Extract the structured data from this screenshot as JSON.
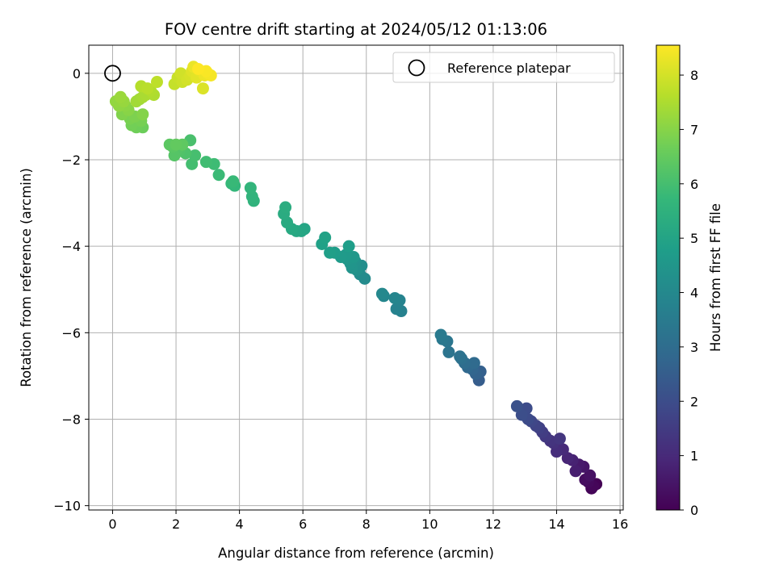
{
  "chart_data": {
    "type": "scatter",
    "title": "FOV centre drift starting at 2024/05/12 01:13:06",
    "xlabel": "Angular distance from reference (arcmin)",
    "ylabel": "Rotation from reference (arcmin)",
    "xlim": [
      -0.75,
      16.1
    ],
    "ylim": [
      -10.1,
      0.65
    ],
    "xticks": [
      "0",
      "2",
      "4",
      "6",
      "8",
      "10",
      "12",
      "14",
      "16"
    ],
    "yticks": [
      "0",
      "−2",
      "−4",
      "−6",
      "−8",
      "−10"
    ],
    "grid": true,
    "legend": {
      "placement": "top-right",
      "label": "Reference platepar"
    },
    "reference_point": {
      "x": 0,
      "y": 0
    },
    "colorbar": {
      "label": "Hours from first FF file",
      "range": [
        0,
        8.55
      ],
      "ticks": [
        "0",
        "1",
        "2",
        "3",
        "4",
        "5",
        "6",
        "7",
        "8"
      ],
      "colormap": "viridis",
      "colors": [
        "#440154",
        "#482878",
        "#3e4989",
        "#31688e",
        "#26828e",
        "#1f9e89",
        "#35b779",
        "#6ece58",
        "#b5de2b",
        "#fde725"
      ]
    },
    "points": [
      [
        15.25,
        -9.5,
        0.02
      ],
      [
        15.1,
        -9.6,
        0.08
      ],
      [
        15.15,
        -9.55,
        0.12
      ],
      [
        15.0,
        -9.45,
        0.2
      ],
      [
        14.9,
        -9.4,
        0.3
      ],
      [
        15.05,
        -9.3,
        0.4
      ],
      [
        14.85,
        -9.1,
        0.5
      ],
      [
        14.7,
        -9.05,
        0.6
      ],
      [
        14.6,
        -9.2,
        0.7
      ],
      [
        14.5,
        -8.95,
        0.8
      ],
      [
        14.35,
        -8.9,
        0.9
      ],
      [
        14.2,
        -8.7,
        1.0
      ],
      [
        14.05,
        -8.6,
        1.05
      ],
      [
        14.0,
        -8.75,
        1.1
      ],
      [
        13.9,
        -8.55,
        1.2
      ],
      [
        13.8,
        -8.5,
        1.3
      ],
      [
        14.1,
        -8.45,
        1.35
      ],
      [
        13.65,
        -8.4,
        1.45
      ],
      [
        13.55,
        -8.3,
        1.55
      ],
      [
        13.45,
        -8.2,
        1.65
      ],
      [
        13.35,
        -8.15,
        1.75
      ],
      [
        13.2,
        -8.05,
        1.85
      ],
      [
        13.1,
        -8.0,
        1.95
      ],
      [
        13.05,
        -7.75,
        2.0
      ],
      [
        12.9,
        -7.9,
        2.05
      ],
      [
        12.75,
        -7.7,
        2.15
      ],
      [
        11.55,
        -7.1,
        2.5
      ],
      [
        11.6,
        -6.9,
        2.6
      ],
      [
        11.45,
        -6.95,
        2.7
      ],
      [
        11.35,
        -6.85,
        2.8
      ],
      [
        11.2,
        -6.8,
        2.9
      ],
      [
        11.4,
        -6.7,
        2.95
      ],
      [
        11.1,
        -6.7,
        3.05
      ],
      [
        11.0,
        -6.6,
        3.15
      ],
      [
        10.95,
        -6.55,
        3.2
      ],
      [
        10.6,
        -6.45,
        3.3
      ],
      [
        10.55,
        -6.2,
        3.35
      ],
      [
        10.4,
        -6.15,
        3.45
      ],
      [
        10.35,
        -6.05,
        3.5
      ],
      [
        9.1,
        -5.5,
        3.75
      ],
      [
        8.95,
        -5.45,
        3.8
      ],
      [
        9.05,
        -5.25,
        3.85
      ],
      [
        8.9,
        -5.2,
        3.9
      ],
      [
        8.55,
        -5.15,
        3.95
      ],
      [
        8.5,
        -5.1,
        4.0
      ],
      [
        7.95,
        -4.75,
        4.1
      ],
      [
        7.8,
        -4.65,
        4.15
      ],
      [
        7.85,
        -4.45,
        4.2
      ],
      [
        7.7,
        -4.55,
        4.3
      ],
      [
        7.65,
        -4.35,
        4.35
      ],
      [
        7.55,
        -4.5,
        4.4
      ],
      [
        7.5,
        -4.4,
        4.45
      ],
      [
        7.4,
        -4.3,
        4.5
      ],
      [
        7.6,
        -4.25,
        4.55
      ],
      [
        7.35,
        -4.2,
        4.6
      ],
      [
        7.2,
        -4.25,
        4.65
      ],
      [
        7.0,
        -4.15,
        4.7
      ],
      [
        7.45,
        -4.0,
        4.75
      ],
      [
        6.85,
        -4.15,
        4.8
      ],
      [
        6.6,
        -3.95,
        4.85
      ],
      [
        6.7,
        -3.8,
        4.9
      ],
      [
        6.05,
        -3.6,
        5.0
      ],
      [
        5.95,
        -3.65,
        5.05
      ],
      [
        5.8,
        -3.65,
        5.1
      ],
      [
        5.65,
        -3.6,
        5.15
      ],
      [
        5.5,
        -3.45,
        5.2
      ],
      [
        5.4,
        -3.25,
        5.25
      ],
      [
        5.45,
        -3.1,
        5.3
      ],
      [
        4.45,
        -2.95,
        5.5
      ],
      [
        4.4,
        -2.85,
        5.55
      ],
      [
        4.35,
        -2.65,
        5.6
      ],
      [
        3.85,
        -2.6,
        5.65
      ],
      [
        3.75,
        -2.55,
        5.7
      ],
      [
        3.8,
        -2.5,
        5.75
      ],
      [
        3.35,
        -2.35,
        5.8
      ],
      [
        3.2,
        -2.1,
        5.85
      ],
      [
        2.95,
        -2.05,
        5.9
      ],
      [
        2.5,
        -2.1,
        5.95
      ],
      [
        2.6,
        -1.9,
        6.0
      ],
      [
        2.45,
        -1.55,
        6.05
      ],
      [
        2.3,
        -1.85,
        6.1
      ],
      [
        2.1,
        -1.8,
        6.15
      ],
      [
        2.05,
        -1.75,
        6.2
      ],
      [
        1.95,
        -1.9,
        6.25
      ],
      [
        1.9,
        -1.7,
        6.3
      ],
      [
        1.8,
        -1.65,
        6.35
      ],
      [
        2.2,
        -1.65,
        6.4
      ],
      [
        2.0,
        -1.65,
        6.45
      ],
      [
        0.95,
        -1.25,
        6.6
      ],
      [
        0.75,
        -1.25,
        6.65
      ],
      [
        0.6,
        -1.2,
        6.7
      ],
      [
        0.9,
        -1.1,
        6.75
      ],
      [
        0.55,
        -1.05,
        6.8
      ],
      [
        0.7,
        -1.0,
        6.85
      ],
      [
        0.3,
        -0.95,
        6.9
      ],
      [
        0.95,
        -0.95,
        6.95
      ],
      [
        0.5,
        -0.85,
        7.0
      ],
      [
        0.4,
        -0.75,
        7.05
      ],
      [
        0.2,
        -0.75,
        7.1
      ],
      [
        0.1,
        -0.65,
        7.15
      ],
      [
        0.35,
        -0.65,
        7.2
      ],
      [
        0.25,
        -0.55,
        7.25
      ],
      [
        0.85,
        -0.6,
        7.3
      ],
      [
        0.75,
        -0.65,
        7.35
      ],
      [
        0.95,
        -0.55,
        7.4
      ],
      [
        1.05,
        -0.5,
        7.45
      ],
      [
        1.3,
        -0.5,
        7.5
      ],
      [
        1.2,
        -0.4,
        7.55
      ],
      [
        0.9,
        -0.3,
        7.6
      ],
      [
        1.1,
        -0.35,
        7.65
      ],
      [
        1.4,
        -0.2,
        7.7
      ],
      [
        1.95,
        -0.25,
        7.8
      ],
      [
        2.05,
        -0.1,
        7.85
      ],
      [
        2.2,
        -0.2,
        7.9
      ],
      [
        2.15,
        0.0,
        7.95
      ],
      [
        2.35,
        -0.15,
        8.0
      ],
      [
        2.45,
        -0.05,
        8.05
      ],
      [
        2.85,
        -0.35,
        8.1
      ],
      [
        2.5,
        0.05,
        8.15
      ],
      [
        2.65,
        -0.1,
        8.2
      ],
      [
        2.75,
        0.05,
        8.25
      ],
      [
        2.55,
        0.15,
        8.3
      ],
      [
        2.9,
        -0.05,
        8.35
      ],
      [
        3.0,
        0.0,
        8.4
      ],
      [
        3.1,
        -0.05,
        8.45
      ],
      [
        2.95,
        0.05,
        8.5
      ],
      [
        2.7,
        0.1,
        8.55
      ]
    ]
  }
}
